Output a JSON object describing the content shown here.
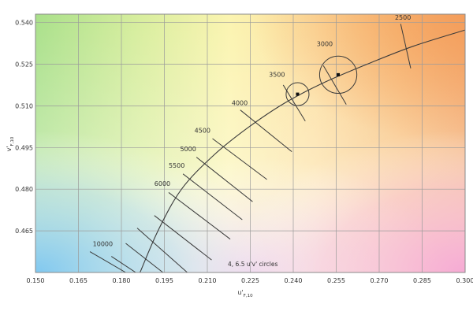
{
  "chart_data": {
    "type": "line",
    "title": "",
    "xlabel": {
      "main": "u'",
      "sub": "F,10"
    },
    "ylabel": {
      "main": "v'",
      "sub": "F,10"
    },
    "xlim": [
      0.15,
      0.3
    ],
    "ylim": [
      0.45,
      0.543
    ],
    "x_ticks": [
      "0.150",
      "0.165",
      "0.180",
      "0.195",
      "0.210",
      "0.225",
      "0.240",
      "0.255",
      "0.270",
      "0.285",
      "0.300"
    ],
    "y_ticks": [
      "0.465",
      "0.480",
      "0.495",
      "0.510",
      "0.525",
      "0.540"
    ],
    "grid": true,
    "background": "chromaticity color gradient",
    "annotation": "4, 6.5 u'v' circles",
    "locus": {
      "name": "",
      "points": [
        [
          0.1865,
          0.45
        ],
        [
          0.193,
          0.4655
        ],
        [
          0.201,
          0.48
        ],
        [
          0.212,
          0.492
        ],
        [
          0.224,
          0.502
        ],
        [
          0.237,
          0.511
        ],
        [
          0.251,
          0.5185
        ],
        [
          0.267,
          0.5255
        ],
        [
          0.282,
          0.5315
        ],
        [
          0.3,
          0.5373
        ]
      ]
    },
    "isotherms": [
      {
        "cct": "10000",
        "line": [
          [
            0.169,
            0.4575
          ],
          [
            0.1815,
            0.45
          ]
        ],
        "label_at": [
          0.17,
          0.4595
        ]
      },
      {
        "cct": "",
        "line": [
          [
            0.1765,
            0.4558
          ],
          [
            0.185,
            0.45
          ]
        ]
      },
      {
        "cct": "",
        "line": [
          [
            0.1815,
            0.4605
          ],
          [
            0.1945,
            0.45
          ]
        ]
      },
      {
        "cct": "",
        "line": [
          [
            0.1855,
            0.466
          ],
          [
            0.203,
            0.45
          ]
        ]
      },
      {
        "cct": "",
        "line": [
          [
            0.1915,
            0.4705
          ],
          [
            0.2115,
            0.4545
          ]
        ]
      },
      {
        "cct": "6000",
        "line": [
          [
            0.1965,
            0.4788
          ],
          [
            0.218,
            0.462
          ]
        ],
        "label_at": [
          0.1915,
          0.4812
        ]
      },
      {
        "cct": "5500",
        "line": [
          [
            0.2015,
            0.4855
          ],
          [
            0.2222,
            0.469
          ]
        ],
        "label_at": [
          0.1965,
          0.4877
        ]
      },
      {
        "cct": "5000",
        "line": [
          [
            0.2062,
            0.4915
          ],
          [
            0.2258,
            0.4755
          ]
        ],
        "label_at": [
          0.2005,
          0.4937
        ]
      },
      {
        "cct": "4500",
        "line": [
          [
            0.2118,
            0.4982
          ],
          [
            0.2308,
            0.4835
          ]
        ],
        "label_at": [
          0.2055,
          0.5003
        ]
      },
      {
        "cct": "4000",
        "line": [
          [
            0.2215,
            0.5085
          ],
          [
            0.2395,
            0.4935
          ]
        ],
        "label_at": [
          0.2185,
          0.5103
        ]
      },
      {
        "cct": "3500",
        "line": [
          [
            0.2365,
            0.5175
          ],
          [
            0.2442,
            0.5045
          ]
        ],
        "label_at": [
          0.2315,
          0.5205
        ]
      },
      {
        "cct": "3000",
        "line": [
          [
            0.2505,
            0.5245
          ],
          [
            0.2585,
            0.5105
          ]
        ],
        "label_at": [
          0.2482,
          0.5315
        ]
      },
      {
        "cct": "2500",
        "line": [
          [
            0.2775,
            0.5395
          ],
          [
            0.281,
            0.5235
          ]
        ],
        "label_at": [
          0.2755,
          0.541
        ]
      }
    ],
    "circles": [
      {
        "center": [
          0.2415,
          0.5142
        ],
        "radius_u": 0.004,
        "marker": true
      },
      {
        "center": [
          0.2557,
          0.5212
        ],
        "radius_u": 0.0065,
        "marker": true
      }
    ]
  }
}
